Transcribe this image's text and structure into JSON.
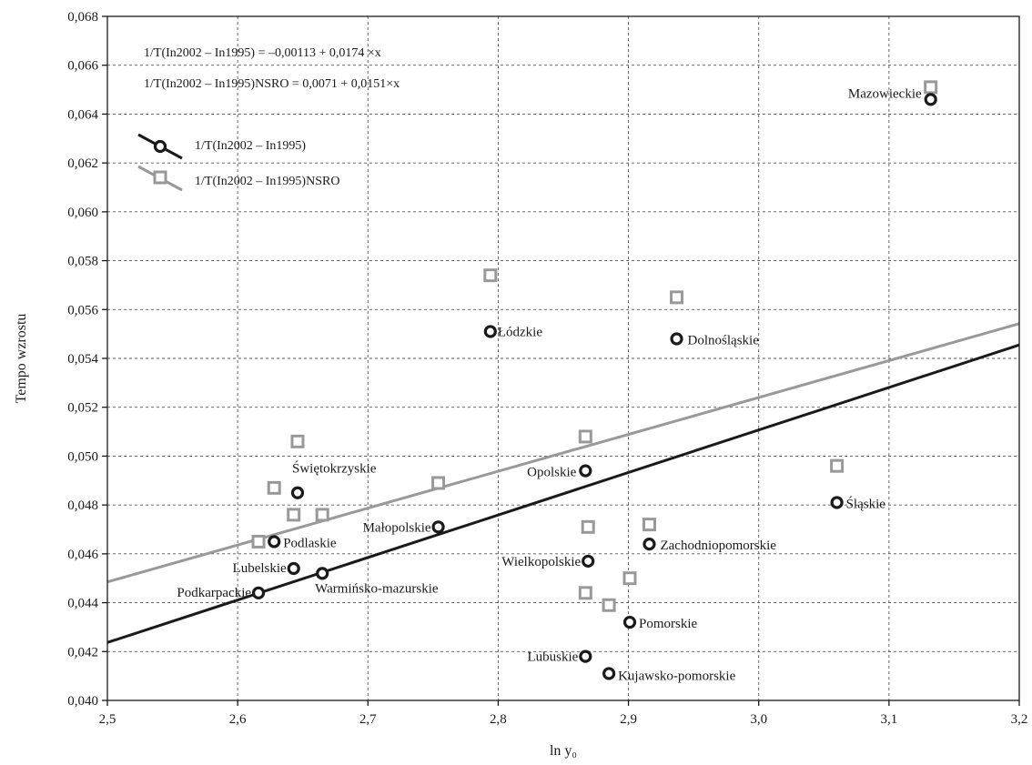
{
  "chart_data": {
    "type": "scatter",
    "title": "",
    "xlabel": "ln y₀",
    "ylabel": "Tempo wzrostu",
    "xlim": [
      2.5,
      3.2
    ],
    "ylim": [
      0.04,
      0.068
    ],
    "xticks": [
      2.5,
      2.6,
      2.7,
      2.8,
      2.9,
      3.0,
      3.1,
      3.2
    ],
    "xtick_labels": [
      "2,5",
      "2,6",
      "2,7",
      "2,8",
      "2,9",
      "3,0",
      "3,1",
      "3,2"
    ],
    "yticks": [
      0.04,
      0.042,
      0.044,
      0.046,
      0.048,
      0.05,
      0.052,
      0.054,
      0.056,
      0.058,
      0.06,
      0.062,
      0.064,
      0.066,
      0.068
    ],
    "ytick_labels": [
      "0,040",
      "0,042",
      "0,044",
      "0,046",
      "0,048",
      "0,050",
      "0,052",
      "0,054",
      "0,056",
      "0,058",
      "0,060",
      "0,062",
      "0,064",
      "0,066",
      "0,068"
    ],
    "grid": true,
    "legend_position": "top-left",
    "equations": [
      "1/T(In2002 – In1995) = –0,00113 + 0,0174 ×x",
      "1/T(In2002 – In1995)NSRO = 0,0071 + 0,0151×x"
    ],
    "series": [
      {
        "name": "1/T(In2002 – In1995)",
        "marker": "circle",
        "color": "#1a1a1a",
        "fit": {
          "intercept": -0.00113,
          "slope": 0.0174
        },
        "points": [
          {
            "label": "Mazowieckie",
            "x": 3.132,
            "y": 0.0646
          },
          {
            "label": "Łódzkie",
            "x": 2.794,
            "y": 0.0551
          },
          {
            "label": "Dolnośląskie",
            "x": 2.937,
            "y": 0.0548
          },
          {
            "label": "Opolskie",
            "x": 2.867,
            "y": 0.0494
          },
          {
            "label": "Świętokrzyskie",
            "x": 2.646,
            "y": 0.0485
          },
          {
            "label": "Śląskie",
            "x": 3.06,
            "y": 0.0481
          },
          {
            "label": "Małopolskie",
            "x": 2.754,
            "y": 0.0471
          },
          {
            "label": "Podlaskie",
            "x": 2.628,
            "y": 0.0465
          },
          {
            "label": "Zachodniopomorskie",
            "x": 2.916,
            "y": 0.0464
          },
          {
            "label": "Wielkopolskie",
            "x": 2.869,
            "y": 0.0457
          },
          {
            "label": "Lubelskie",
            "x": 2.643,
            "y": 0.0454
          },
          {
            "label": "Warmińsko-mazurskie",
            "x": 2.665,
            "y": 0.0452
          },
          {
            "label": "Podkarpackie",
            "x": 2.616,
            "y": 0.0444
          },
          {
            "label": "Pomorskie",
            "x": 2.901,
            "y": 0.0432
          },
          {
            "label": "Lubuskie",
            "x": 2.867,
            "y": 0.0418
          },
          {
            "label": "Kujawsko-pomorskie",
            "x": 2.885,
            "y": 0.0411
          }
        ]
      },
      {
        "name": "1/T(In2002 – In1995)NSRO",
        "marker": "square",
        "color": "#999999",
        "fit": {
          "intercept": 0.0071,
          "slope": 0.0151
        },
        "points": [
          {
            "x": 3.132,
            "y": 0.0651
          },
          {
            "x": 2.794,
            "y": 0.0574
          },
          {
            "x": 2.937,
            "y": 0.0565
          },
          {
            "x": 2.867,
            "y": 0.0508
          },
          {
            "x": 2.646,
            "y": 0.0506
          },
          {
            "x": 3.06,
            "y": 0.0496
          },
          {
            "x": 2.754,
            "y": 0.0489
          },
          {
            "x": 2.628,
            "y": 0.0487
          },
          {
            "x": 2.643,
            "y": 0.0476
          },
          {
            "x": 2.665,
            "y": 0.0476
          },
          {
            "x": 2.916,
            "y": 0.0472
          },
          {
            "x": 2.869,
            "y": 0.0471
          },
          {
            "x": 2.616,
            "y": 0.0465
          },
          {
            "x": 2.901,
            "y": 0.045
          },
          {
            "x": 2.867,
            "y": 0.0444
          },
          {
            "x": 2.885,
            "y": 0.0439
          }
        ]
      }
    ]
  }
}
